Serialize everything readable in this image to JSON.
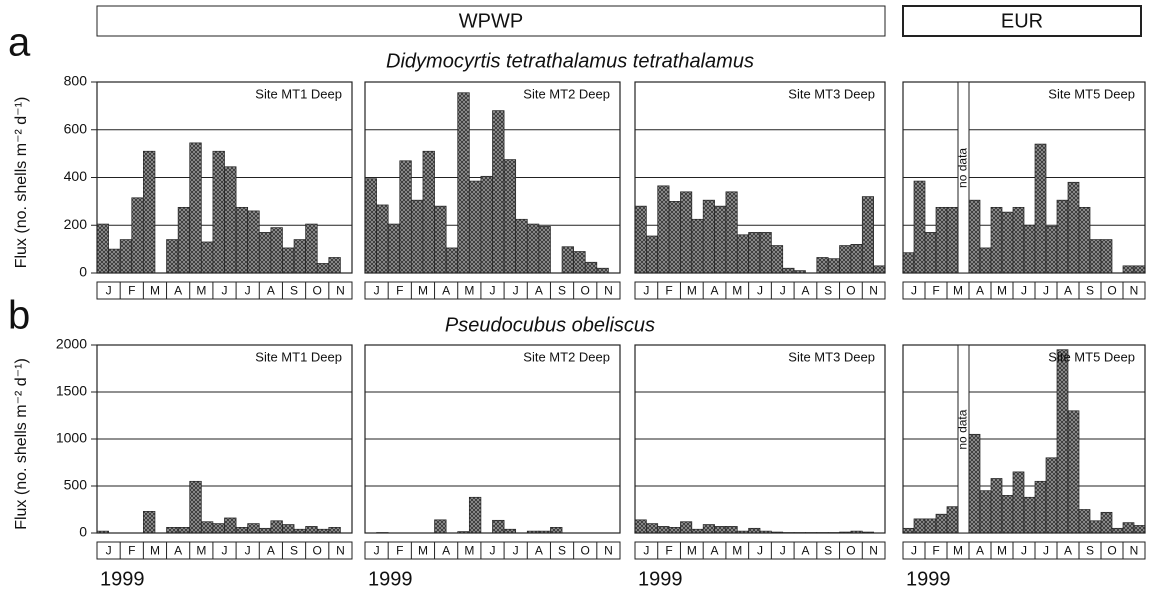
{
  "figure": {
    "groups": [
      "WPWP",
      "EUR"
    ],
    "rows": [
      {
        "letter": "a",
        "title": "Didymocyrtis tetrathalamus tetrathalamus"
      },
      {
        "letter": "b",
        "title": "Pseudocubus obeliscus"
      }
    ]
  },
  "chart_data": [
    {
      "type": "bar",
      "annotation": "Site MT1 Deep",
      "color": "#6a6a6a",
      "ylabel": "Flux (no. shells m⁻² d⁻¹)",
      "months": [
        "J",
        "F",
        "M",
        "A",
        "M",
        "J",
        "J",
        "A",
        "S",
        "O",
        "N"
      ],
      "values": [
        205,
        100,
        140,
        315,
        510,
        null,
        140,
        275,
        545,
        130,
        510,
        445,
        275,
        260,
        170,
        190,
        105,
        140,
        205,
        40,
        65,
        null
      ],
      "ylim": [
        0,
        800
      ],
      "yticks": [
        0,
        200,
        400,
        600,
        800
      ],
      "grid": true
    },
    {
      "type": "bar",
      "annotation": "Site MT2 Deep",
      "color": "#6a6a6a",
      "months": [
        "J",
        "F",
        "M",
        "A",
        "M",
        "J",
        "J",
        "A",
        "S",
        "O",
        "N"
      ],
      "values": [
        395,
        285,
        205,
        470,
        305,
        510,
        280,
        105,
        755,
        385,
        405,
        680,
        475,
        225,
        205,
        195,
        null,
        110,
        90,
        45,
        20,
        null
      ],
      "ylim": [
        0,
        800
      ],
      "yticks": [
        0,
        200,
        400,
        600,
        800
      ],
      "grid": true
    },
    {
      "type": "bar",
      "annotation": "Site MT3 Deep",
      "color": "#6a6a6a",
      "months": [
        "J",
        "F",
        "M",
        "A",
        "M",
        "J",
        "J",
        "A",
        "S",
        "O",
        "N"
      ],
      "values": [
        280,
        155,
        365,
        300,
        340,
        225,
        305,
        280,
        340,
        160,
        170,
        170,
        115,
        20,
        10,
        null,
        65,
        60,
        115,
        120,
        320,
        30
      ],
      "ylim": [
        0,
        800
      ],
      "yticks": [
        0,
        200,
        400,
        600,
        800
      ],
      "grid": true
    },
    {
      "type": "bar",
      "annotation": "Site MT5 Deep",
      "color": "#6a6a6a",
      "no_data_label": "no data",
      "months": [
        "J",
        "F",
        "M",
        "A",
        "M",
        "J",
        "J",
        "A",
        "S",
        "O",
        "N"
      ],
      "values": [
        85,
        385,
        170,
        275,
        275,
        null,
        305,
        105,
        275,
        255,
        275,
        200,
        540,
        195,
        305,
        380,
        275,
        140,
        140,
        null,
        30,
        30
      ],
      "ylim": [
        0,
        800
      ],
      "yticks": [
        0,
        200,
        400,
        600,
        800
      ],
      "grid": true
    },
    {
      "type": "bar",
      "annotation": "Site MT1 Deep",
      "color": "#6a6a6a",
      "ylabel": "Flux (no. shells m⁻² d⁻¹)",
      "year": "1999",
      "months": [
        "J",
        "F",
        "M",
        "A",
        "M",
        "J",
        "J",
        "A",
        "S",
        "O",
        "N"
      ],
      "values": [
        20,
        0,
        0,
        0,
        230,
        0,
        60,
        60,
        550,
        120,
        100,
        160,
        60,
        100,
        50,
        130,
        90,
        40,
        70,
        40,
        60,
        null
      ],
      "ylim": [
        0,
        2000
      ],
      "yticks": [
        0,
        500,
        1000,
        1500,
        2000
      ],
      "grid": true
    },
    {
      "type": "bar",
      "annotation": "Site MT2 Deep",
      "color": "#6a6a6a",
      "year": "1999",
      "months": [
        "J",
        "F",
        "M",
        "A",
        "M",
        "J",
        "J",
        "A",
        "S",
        "O",
        "N"
      ],
      "values": [
        0,
        5,
        0,
        0,
        0,
        0,
        140,
        0,
        15,
        380,
        0,
        135,
        40,
        0,
        20,
        20,
        60,
        0,
        0,
        0,
        0,
        0
      ],
      "ylim": [
        0,
        2000
      ],
      "yticks": [
        0,
        500,
        1000,
        1500,
        2000
      ],
      "grid": true
    },
    {
      "type": "bar",
      "annotation": "Site MT3 Deep",
      "color": "#6a6a6a",
      "year": "1999",
      "months": [
        "J",
        "F",
        "M",
        "A",
        "M",
        "J",
        "J",
        "A",
        "S",
        "O",
        "N"
      ],
      "values": [
        140,
        100,
        70,
        60,
        120,
        40,
        90,
        70,
        70,
        20,
        50,
        20,
        10,
        5,
        5,
        5,
        5,
        5,
        10,
        20,
        10,
        0
      ],
      "ylim": [
        0,
        2000
      ],
      "yticks": [
        0,
        500,
        1000,
        1500,
        2000
      ],
      "grid": true
    },
    {
      "type": "bar",
      "annotation": "Site MT5 Deep",
      "color": "#6a6a6a",
      "no_data_label": "no data",
      "year": "1999",
      "months": [
        "J",
        "F",
        "M",
        "A",
        "M",
        "J",
        "J",
        "A",
        "S",
        "O",
        "N"
      ],
      "values": [
        50,
        150,
        150,
        200,
        280,
        null,
        1050,
        450,
        580,
        400,
        650,
        380,
        550,
        800,
        1950,
        1300,
        250,
        130,
        220,
        50,
        110,
        80
      ],
      "ylim": [
        0,
        2000
      ],
      "yticks": [
        0,
        500,
        1000,
        1500,
        2000
      ],
      "grid": true
    }
  ]
}
